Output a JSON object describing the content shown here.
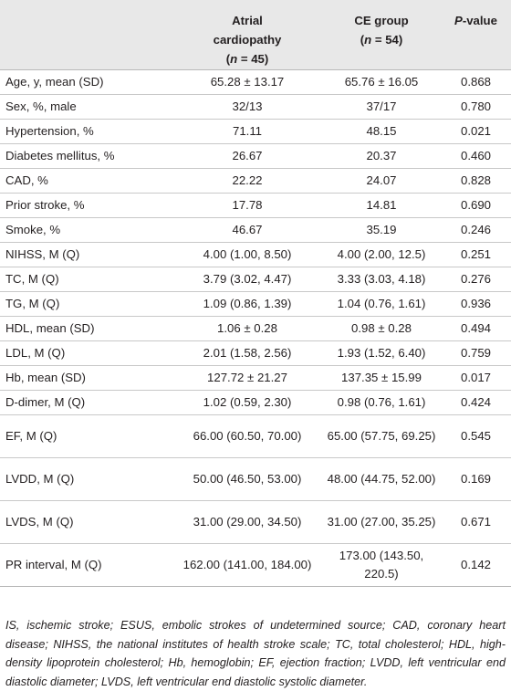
{
  "header": {
    "col1": "",
    "col2_line1": "Atrial",
    "col2_line2": "cardiopathy",
    "col2_n": "(n = 45)",
    "col3_line1": "CE group",
    "col3_n": "(n = 54)",
    "col4_p": "P",
    "col4_rest": "-value"
  },
  "rows": [
    {
      "label": "Age, y, mean (SD)",
      "a": "65.28 ± 13.17",
      "b": "65.76 ± 16.05",
      "p": "0.868"
    },
    {
      "label": "Sex, %, male",
      "a": "32/13",
      "b": "37/17",
      "p": "0.780"
    },
    {
      "label": "Hypertension, %",
      "a": "71.11",
      "b": "48.15",
      "p": "0.021"
    },
    {
      "label": "Diabetes mellitus, %",
      "a": "26.67",
      "b": "20.37",
      "p": "0.460"
    },
    {
      "label": "CAD, %",
      "a": "22.22",
      "b": "24.07",
      "p": "0.828"
    },
    {
      "label": "Prior stroke, %",
      "a": "17.78",
      "b": "14.81",
      "p": "0.690"
    },
    {
      "label": "Smoke, %",
      "a": "46.67",
      "b": "35.19",
      "p": "0.246"
    },
    {
      "label": "NIHSS, M (Q)",
      "a": "4.00 (1.00, 8.50)",
      "b": "4.00 (2.00, 12.5)",
      "p": "0.251"
    },
    {
      "label": "TC, M (Q)",
      "a": "3.79 (3.02, 4.47)",
      "b": "3.33 (3.03, 4.18)",
      "p": "0.276"
    },
    {
      "label": "TG, M (Q)",
      "a": "1.09 (0.86, 1.39)",
      "b": "1.04 (0.76, 1.61)",
      "p": "0.936"
    },
    {
      "label": "HDL, mean (SD)",
      "a": "1.06 ± 0.28",
      "b": "0.98 ± 0.28",
      "p": "0.494"
    },
    {
      "label": "LDL, M (Q)",
      "a": "2.01 (1.58, 2.56)",
      "b": "1.93 (1.52, 6.40)",
      "p": "0.759"
    },
    {
      "label": "Hb, mean (SD)",
      "a": "127.72 ± 21.27",
      "b": "137.35 ± 15.99",
      "p": "0.017"
    },
    {
      "label": "D-dimer, M (Q)",
      "a": "1.02 (0.59, 2.30)",
      "b": "0.98 (0.76, 1.61)",
      "p": "0.424"
    },
    {
      "label": "EF, M (Q)",
      "a": "66.00 (60.50, 70.00)",
      "b": "65.00 (57.75, 69.25)",
      "p": "0.545"
    },
    {
      "label": "LVDD, M (Q)",
      "a": "50.00 (46.50, 53.00)",
      "b": "48.00 (44.75, 52.00)",
      "p": "0.169"
    },
    {
      "label": "LVDS, M (Q)",
      "a": "31.00 (29.00, 34.50)",
      "b": "31.00 (27.00, 35.25)",
      "p": "0.671"
    },
    {
      "label": "PR interval, M (Q)",
      "a": "162.00 (141.00, 184.00)",
      "b": "173.00 (143.50, 220.5)",
      "p": "0.142"
    }
  ],
  "footnote": "IS, ischemic stroke; ESUS, embolic strokes of undetermined source; CAD, coronary heart disease; NIHSS, the national institutes of health stroke scale; TC, total cholesterol; HDL, high-density lipoprotein cholesterol; Hb, hemoglobin; EF, ejection fraction; LVDD, left ventricular end diastolic diameter; LVDS, left ventricular end diastolic systolic diameter."
}
